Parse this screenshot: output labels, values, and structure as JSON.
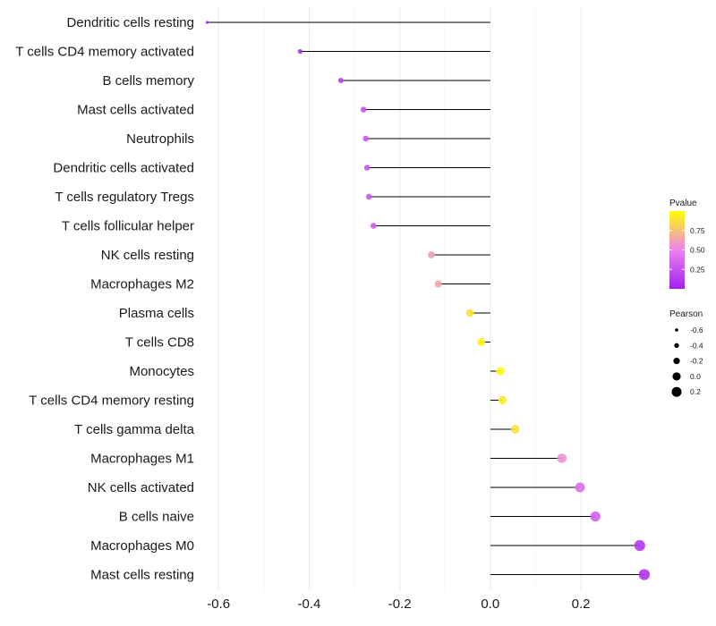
{
  "chart_data": {
    "type": "lollipop",
    "title": "",
    "xlabel": "",
    "ylabel": "",
    "xlim": [
      -0.64,
      0.36
    ],
    "x_ticks": [
      -0.6,
      -0.4,
      -0.2,
      0.0,
      0.2
    ],
    "x_tick_labels": [
      "-0.6",
      "-0.4",
      "-0.2",
      "0.0",
      "0.2"
    ],
    "grid": true,
    "categories": [
      "Dendritic cells resting",
      "T cells CD4 memory activated",
      "B cells memory",
      "Mast cells activated",
      "Neutrophils",
      "Dendritic cells activated",
      "T cells regulatory  Tregs",
      "T cells follicular helper",
      "NK cells resting",
      "Macrophages M2",
      "Plasma cells",
      "T cells CD8",
      "Monocytes",
      "T cells CD4 memory resting",
      "T cells gamma delta",
      "Macrophages M1",
      "NK cells activated",
      "B cells naive",
      "Macrophages M0",
      "Mast cells resting"
    ],
    "pearson": [
      -0.625,
      -0.42,
      -0.33,
      -0.28,
      -0.275,
      -0.272,
      -0.268,
      -0.258,
      -0.13,
      -0.115,
      -0.045,
      -0.02,
      0.022,
      0.027,
      0.055,
      0.158,
      0.198,
      0.232,
      0.33,
      0.34
    ],
    "pvalue": [
      0.02,
      0.06,
      0.16,
      0.26,
      0.27,
      0.28,
      0.28,
      0.3,
      0.6,
      0.64,
      0.9,
      0.96,
      0.97,
      0.93,
      0.88,
      0.55,
      0.4,
      0.32,
      0.12,
      0.1
    ],
    "color_legend": {
      "title": "Pvalue",
      "ticks": [
        0.25,
        0.5,
        0.75
      ],
      "tick_labels": [
        "0.25",
        "0.50",
        "0.75"
      ],
      "range": [
        0.0,
        1.0
      ],
      "low_color": "#a020f0",
      "mid_color": "#ee82ee",
      "high_color": "#ffff00",
      "placement": "right"
    },
    "size_legend": {
      "title": "Pearson",
      "values": [
        -0.6,
        -0.4,
        -0.2,
        0.0,
        0.2
      ],
      "labels": [
        "-0.6",
        "-0.4",
        "-0.2",
        "0.0",
        "0.2"
      ],
      "range": [
        -0.64,
        0.35
      ],
      "placement": "right"
    }
  }
}
